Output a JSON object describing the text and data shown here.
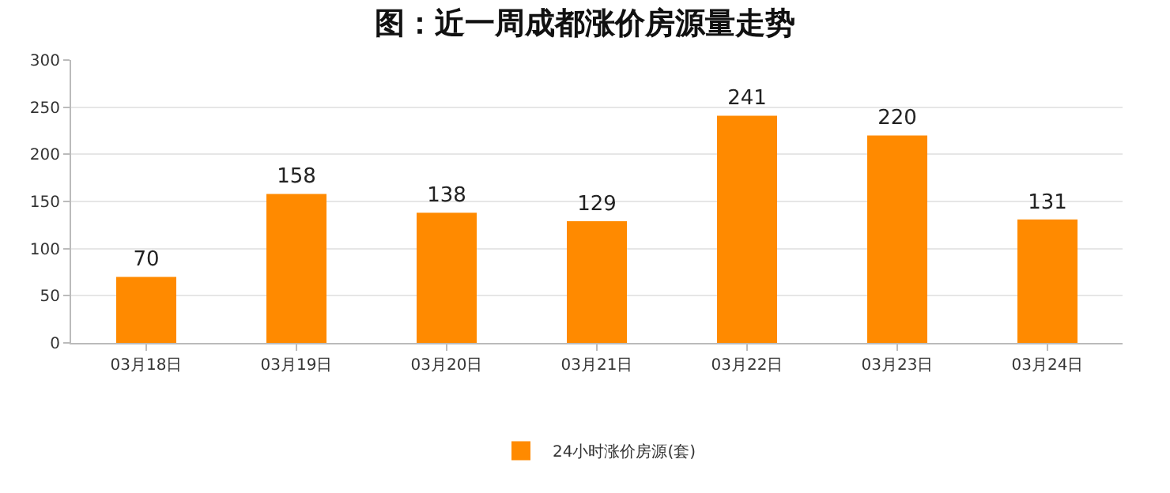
{
  "chart_data": {
    "type": "bar",
    "title": "图：近一周成都涨价房源量走势",
    "categories": [
      "03月18日",
      "03月19日",
      "03月20日",
      "03月21日",
      "03月22日",
      "03月23日",
      "03月24日"
    ],
    "series": [
      {
        "name": "24小时涨价房源(套)",
        "color": "#ff8a00",
        "values": [
          70,
          158,
          138,
          129,
          241,
          220,
          131
        ]
      }
    ],
    "ylim": [
      0,
      300
    ],
    "yticks": [
      0,
      50,
      100,
      150,
      200,
      250,
      300
    ],
    "grid": "y",
    "legend": "bottom",
    "data_labels": true
  }
}
